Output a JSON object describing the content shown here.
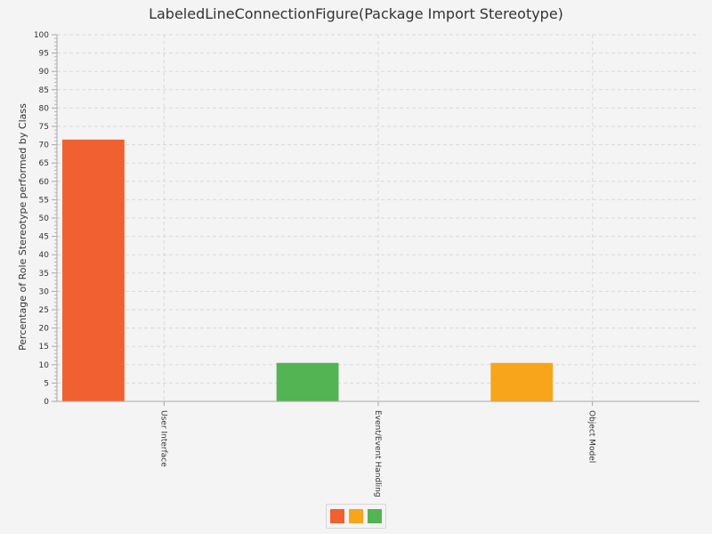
{
  "chart_data": {
    "type": "bar",
    "title": "LabeledLineConnectionFigure(Package Import Stereotype)",
    "xlabel": "",
    "ylabel": "Percentage of Role Stereotype performed by Class",
    "categories": [
      "User Interface",
      "Event/Event Handling",
      "Object Model"
    ],
    "values": [
      71.4,
      10.5,
      10.5
    ],
    "colors": [
      "#f06030",
      "#52b452",
      "#f8a51b"
    ],
    "ylim": [
      0,
      100
    ],
    "ytick_step": 5,
    "grid": true,
    "legend": {
      "placement": "bottom-center",
      "swatches": [
        "#f06030",
        "#f8a51b",
        "#52b452"
      ]
    }
  }
}
